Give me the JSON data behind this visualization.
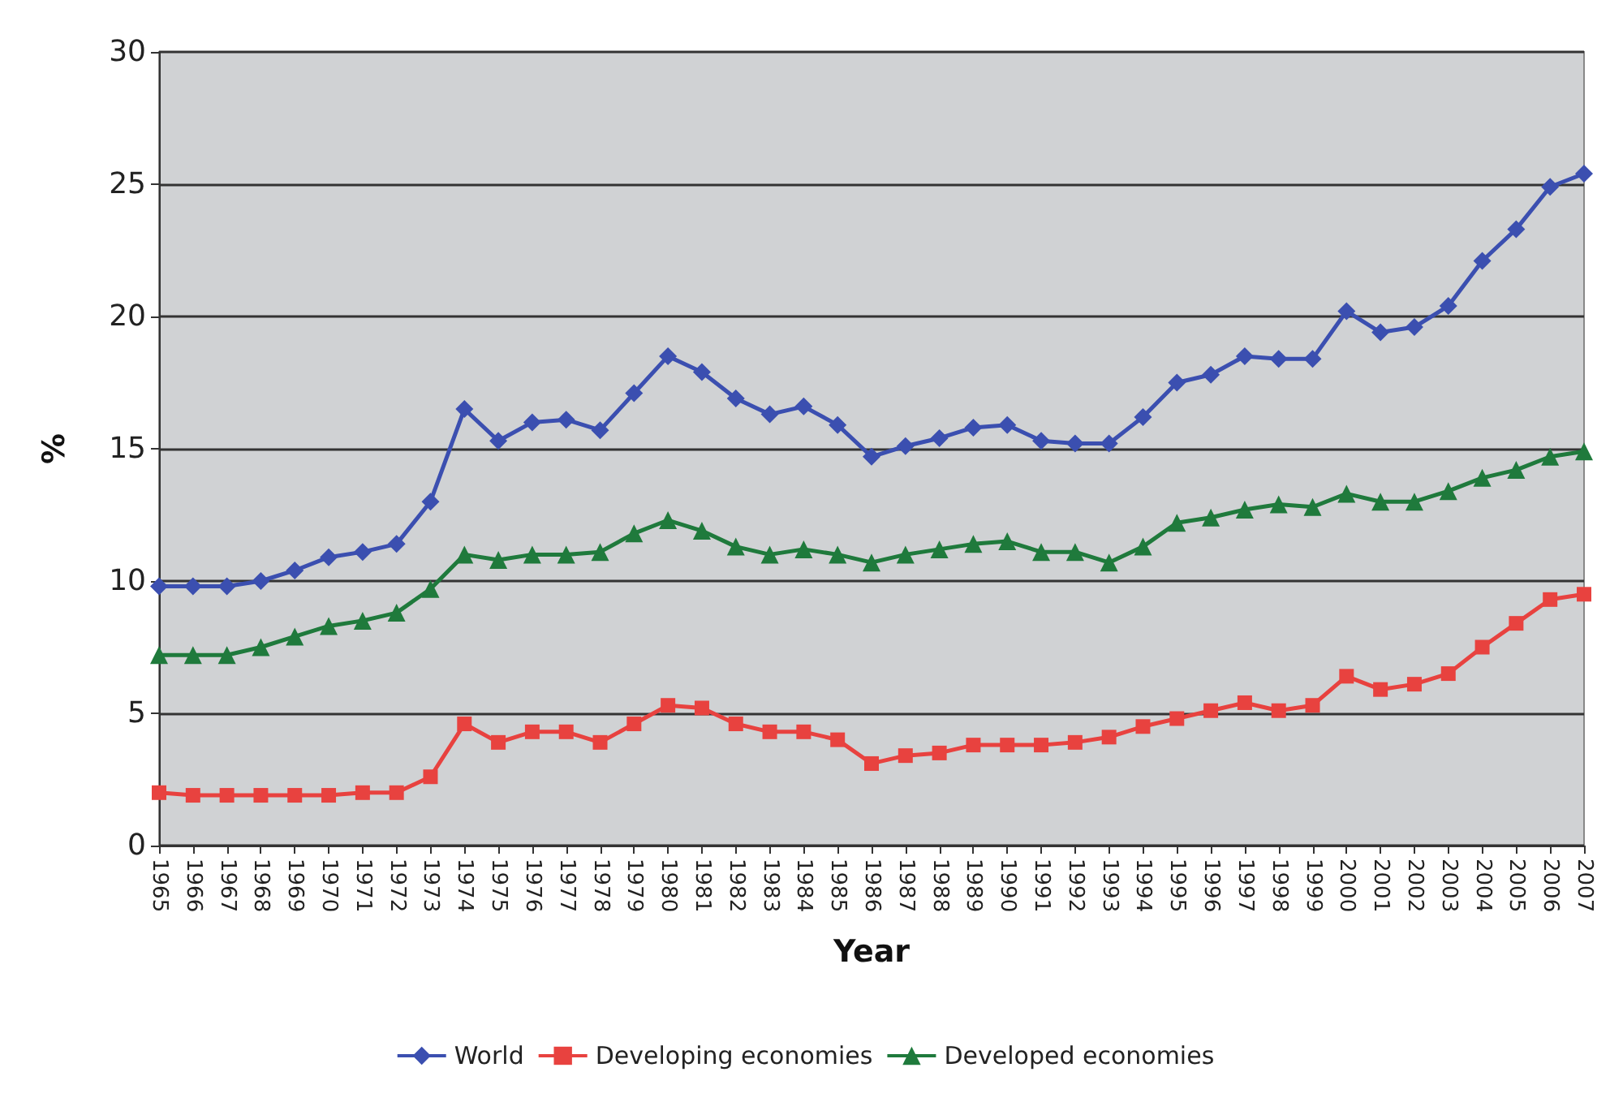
{
  "chart_data": {
    "type": "line",
    "xlabel": "Year",
    "ylabel": "%",
    "categories": [
      "1965",
      "1966",
      "1967",
      "1968",
      "1969",
      "1970",
      "1971",
      "1972",
      "1973",
      "1974",
      "1975",
      "1976",
      "1977",
      "1978",
      "1979",
      "1980",
      "1981",
      "1982",
      "1983",
      "1984",
      "1985",
      "1986",
      "1987",
      "1988",
      "1989",
      "1990",
      "1991",
      "1992",
      "1993",
      "1994",
      "1995",
      "1996",
      "1997",
      "1998",
      "1999",
      "2000",
      "2001",
      "2002",
      "2003",
      "2004",
      "2005",
      "2006",
      "2007"
    ],
    "series": [
      {
        "name": "World",
        "color": "#3b4fb0",
        "marker": "diamond",
        "values": [
          9.8,
          9.8,
          9.8,
          10.0,
          10.4,
          10.9,
          11.1,
          11.4,
          13.0,
          16.5,
          15.3,
          16.0,
          16.1,
          15.7,
          17.1,
          18.5,
          17.9,
          16.9,
          16.3,
          16.6,
          15.9,
          14.7,
          15.1,
          15.4,
          15.8,
          15.9,
          15.3,
          15.2,
          15.2,
          16.2,
          17.5,
          17.8,
          18.5,
          18.4,
          18.4,
          20.2,
          19.4,
          19.6,
          20.4,
          22.1,
          23.3,
          24.9,
          25.4
        ]
      },
      {
        "name": "Developing economies",
        "color": "#e8423f",
        "marker": "square",
        "values": [
          2.0,
          1.9,
          1.9,
          1.9,
          1.9,
          1.9,
          2.0,
          2.0,
          2.6,
          4.6,
          3.9,
          4.3,
          4.3,
          3.9,
          4.6,
          5.3,
          5.2,
          4.6,
          4.3,
          4.3,
          4.0,
          3.1,
          3.4,
          3.5,
          3.8,
          3.8,
          3.8,
          3.9,
          4.1,
          4.5,
          4.8,
          5.1,
          5.4,
          5.1,
          5.3,
          6.4,
          5.9,
          6.1,
          6.5,
          7.5,
          8.4,
          9.3,
          9.5
        ]
      },
      {
        "name": "Developed economies",
        "color": "#1f7a3c",
        "marker": "triangle",
        "values": [
          7.2,
          7.2,
          7.2,
          7.5,
          7.9,
          8.3,
          8.5,
          8.8,
          9.7,
          11.0,
          10.8,
          11.0,
          11.0,
          11.1,
          11.8,
          12.3,
          11.9,
          11.3,
          11.0,
          11.2,
          11.0,
          10.7,
          11.0,
          11.2,
          11.4,
          11.5,
          11.1,
          11.1,
          10.7,
          11.3,
          12.2,
          12.4,
          12.7,
          12.9,
          12.8,
          13.3,
          13.0,
          13.0,
          13.4,
          13.9,
          14.2,
          14.7,
          14.9
        ]
      }
    ],
    "ylim": [
      0,
      30
    ],
    "yticks": [
      0,
      5,
      10,
      15,
      20,
      25,
      30
    ],
    "grid": "y",
    "legend": "bottom",
    "line_style": "solid"
  }
}
